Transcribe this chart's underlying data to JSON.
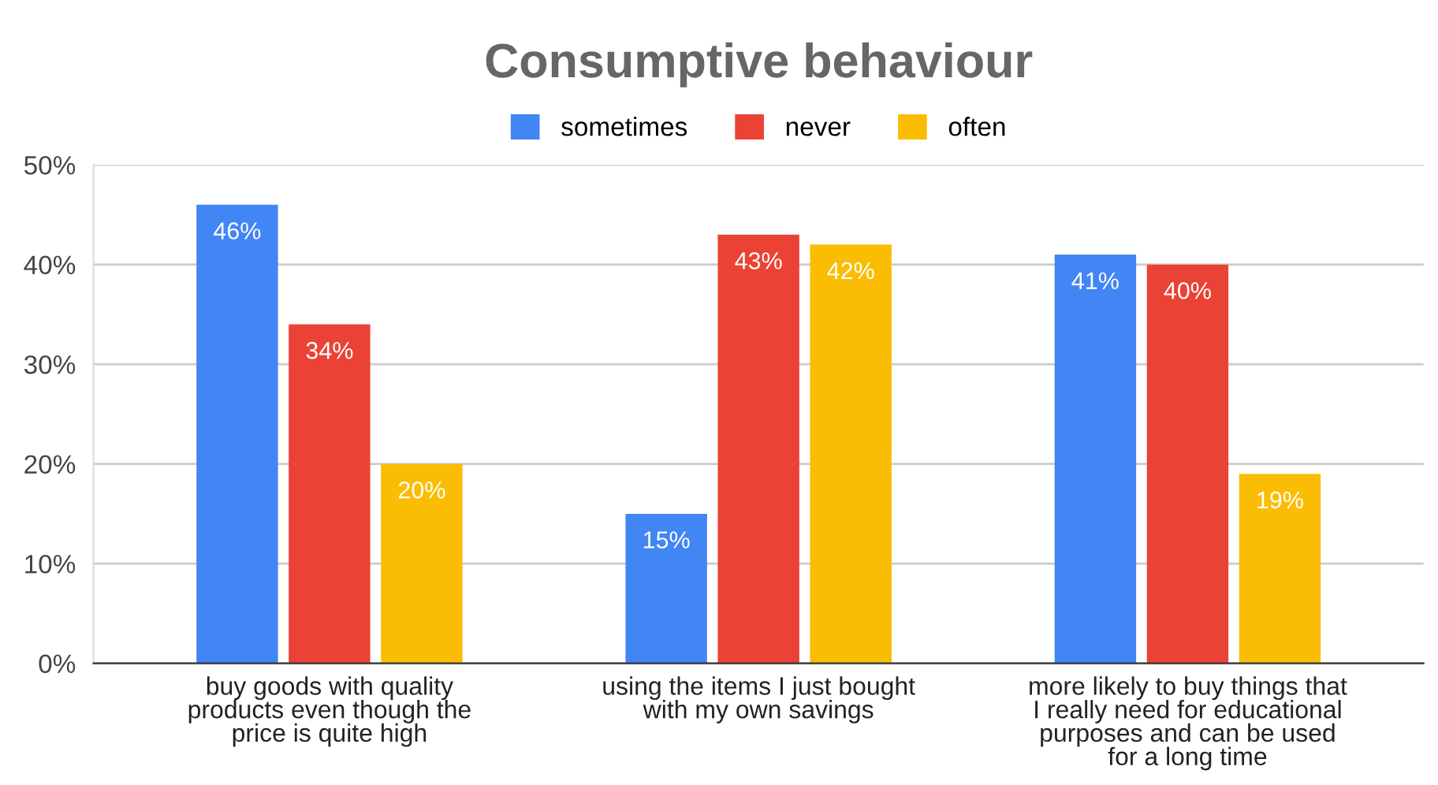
{
  "chart_data": {
    "type": "bar",
    "title": "Consumptive behaviour",
    "categories": [
      "buy goods with quality\nproducts even though the\nprice is quite high",
      "using the items I just bought\nwith my own savings",
      "more likely to buy things that\nI really need for educational\npurposes and can be used\nfor a long time"
    ],
    "series": [
      {
        "name": "sometimes",
        "color": "#4285f4",
        "values": [
          46,
          15,
          41
        ],
        "value_labels": [
          "46%",
          "15%",
          "41%"
        ]
      },
      {
        "name": "never",
        "color": "#ea4335",
        "values": [
          34,
          43,
          40
        ],
        "value_labels": [
          "34%",
          "43%",
          "40%"
        ]
      },
      {
        "name": "often",
        "color": "#fbbc04",
        "values": [
          20,
          42,
          19
        ],
        "value_labels": [
          "20%",
          "42%",
          "19%"
        ]
      }
    ],
    "ylim": [
      0,
      50
    ],
    "yticks": [
      {
        "value": 0,
        "label": "0%"
      },
      {
        "value": 10,
        "label": "10%"
      },
      {
        "value": 20,
        "label": "20%"
      },
      {
        "value": 30,
        "label": "30%"
      },
      {
        "value": 40,
        "label": "40%"
      },
      {
        "value": 50,
        "label": "50%"
      }
    ],
    "grid": "y",
    "legend": "top"
  }
}
